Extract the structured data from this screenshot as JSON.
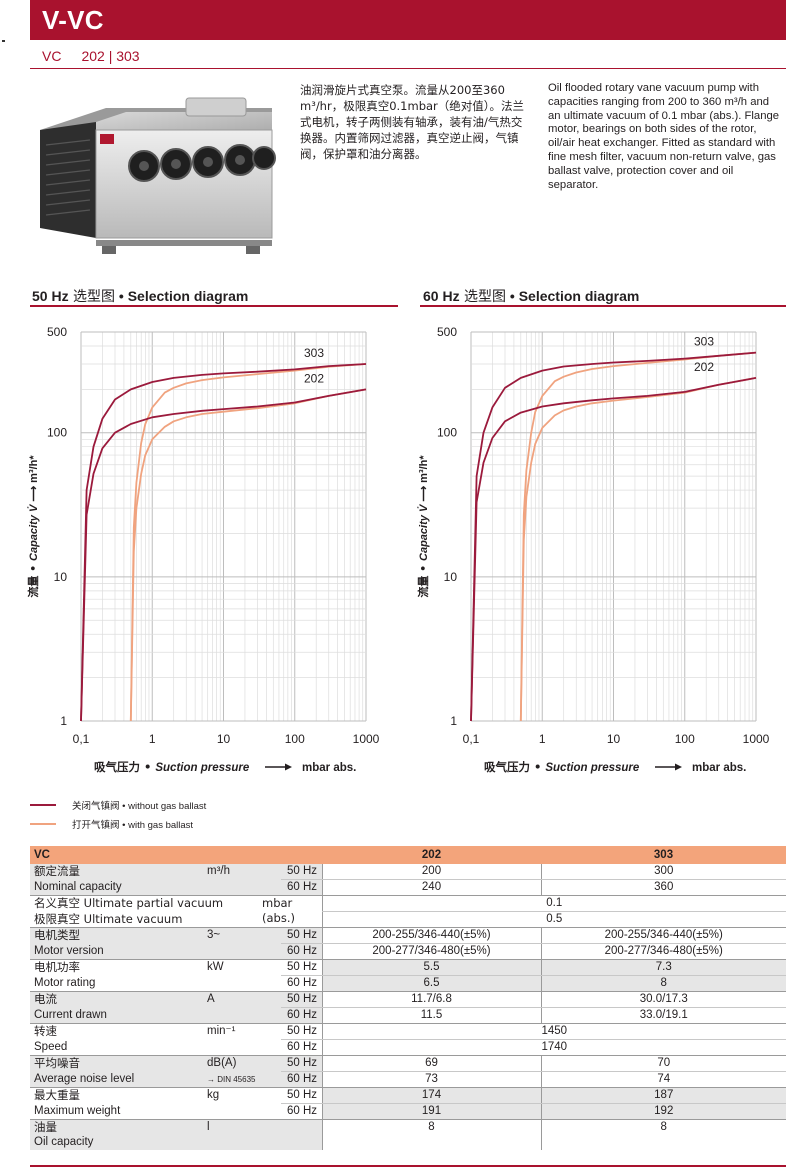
{
  "header": {
    "title": "V-VC"
  },
  "subtitle": {
    "series": "VC",
    "models": "202 | 303"
  },
  "description": {
    "cn": "油润滑旋片式真空泵。流量从200至360 m³/hr，极限真空0.1mbar（绝对值）。法兰式电机，转子两侧装有轴承，装有油/气热交换器。内置筛网过滤器，真空逆止阀，气镇阀，保护罩和油分离器。",
    "en": "Oil flooded rotary vane vacuum pump with capacities ranging from 200 to 360 m³/h and an ultimate vacuum of 0.1 mbar (abs.). Flange motor, bearings on both sides of the rotor, oil/air heat exchanger. Fitted as standard with fine mesh filter, vacuum non-return valve, gas ballast valve, protection cover and oil separator."
  },
  "charts": [
    {
      "heading_bold": "50 Hz",
      "heading_cn": " 选型图",
      "heading_en": " • Selection diagram"
    },
    {
      "heading_bold": "60 Hz",
      "heading_cn": " 选型图",
      "heading_en": " • Selection diagram"
    }
  ],
  "axis_text": {
    "y_cn": "流量 • ",
    "y_en": "Capacity V̇",
    "y_unit": "m³/h*",
    "x_cn": "吸气压力 • ",
    "x_en": "Suction pressure",
    "x_unit": "mbar abs."
  },
  "legend": {
    "without": "关闭气镇阀 • without gas ballast",
    "with": "打开气镇阀 • with gas ballast"
  },
  "colors": {
    "brand": "#a9122e",
    "without_ballast": "#9b1a3c",
    "with_ballast": "#f0a37f",
    "table_header": "#f3a47b"
  },
  "chart_data": [
    {
      "type": "line",
      "title": "50 Hz 选型图 • Selection diagram",
      "xlabel": "吸气压力 • Suction pressure — mbar abs.",
      "ylabel": "流量 • Capacity V̇ — m³/h*",
      "xscale": "log",
      "yscale": "log",
      "xlim": [
        0.1,
        1000
      ],
      "ylim": [
        1,
        500
      ],
      "xticks": [
        "0,1",
        "1",
        "10",
        "100",
        "1000"
      ],
      "yticks": [
        "1",
        "10",
        "100",
        "500"
      ],
      "grid": true,
      "series": [
        {
          "name": "303",
          "ballast": "without",
          "x": [
            0.1,
            0.12,
            0.15,
            0.2,
            0.3,
            0.5,
            1,
            2,
            5,
            10,
            30,
            100,
            300,
            1000
          ],
          "y": [
            1,
            40,
            80,
            125,
            170,
            200,
            225,
            240,
            252,
            258,
            265,
            275,
            290,
            300
          ]
        },
        {
          "name": "202",
          "ballast": "without",
          "x": [
            0.1,
            0.12,
            0.15,
            0.2,
            0.3,
            0.5,
            1,
            2,
            5,
            10,
            30,
            100,
            300,
            1000
          ],
          "y": [
            1,
            27,
            52,
            78,
            100,
            115,
            128,
            135,
            142,
            146,
            152,
            162,
            180,
            200
          ]
        },
        {
          "name": "303",
          "ballast": "with",
          "x": [
            0.5,
            0.55,
            0.6,
            0.7,
            0.8,
            1,
            1.5,
            2,
            3,
            5,
            10,
            30,
            100,
            300,
            1000
          ],
          "y": [
            1,
            22,
            45,
            85,
            115,
            150,
            190,
            205,
            220,
            232,
            242,
            255,
            270,
            287,
            300
          ]
        },
        {
          "name": "202",
          "ballast": "with",
          "x": [
            0.5,
            0.55,
            0.6,
            0.7,
            0.8,
            1,
            1.5,
            2,
            3,
            5,
            10,
            30,
            100,
            300,
            1000
          ],
          "y": [
            1,
            15,
            30,
            52,
            70,
            90,
            110,
            120,
            128,
            135,
            140,
            148,
            160,
            180,
            200
          ]
        }
      ]
    },
    {
      "type": "line",
      "title": "60 Hz 选型图 • Selection diagram",
      "xlabel": "吸气压力 • Suction pressure — mbar abs.",
      "ylabel": "流量 • Capacity V̇ — m³/h*",
      "xscale": "log",
      "yscale": "log",
      "xlim": [
        0.1,
        1000
      ],
      "ylim": [
        1,
        500
      ],
      "xticks": [
        "0,1",
        "1",
        "10",
        "100",
        "1000"
      ],
      "yticks": [
        "1",
        "10",
        "100",
        "500"
      ],
      "grid": true,
      "series": [
        {
          "name": "303",
          "ballast": "without",
          "x": [
            0.1,
            0.12,
            0.15,
            0.2,
            0.3,
            0.5,
            1,
            2,
            5,
            10,
            30,
            100,
            300,
            1000
          ],
          "y": [
            1,
            50,
            100,
            150,
            205,
            240,
            270,
            288,
            300,
            307,
            315,
            327,
            342,
            360
          ]
        },
        {
          "name": "202",
          "ballast": "without",
          "x": [
            0.1,
            0.12,
            0.15,
            0.2,
            0.3,
            0.5,
            1,
            2,
            5,
            10,
            30,
            100,
            300,
            1000
          ],
          "y": [
            1,
            33,
            62,
            92,
            120,
            138,
            152,
            160,
            168,
            173,
            180,
            192,
            215,
            240
          ]
        },
        {
          "name": "303",
          "ballast": "with",
          "x": [
            0.5,
            0.55,
            0.6,
            0.7,
            0.8,
            1,
            1.5,
            2,
            3,
            5,
            10,
            30,
            100,
            300,
            1000
          ],
          "y": [
            1,
            27,
            55,
            100,
            140,
            180,
            228,
            245,
            262,
            277,
            290,
            305,
            322,
            342,
            360
          ]
        },
        {
          "name": "202",
          "ballast": "with",
          "x": [
            0.5,
            0.55,
            0.6,
            0.7,
            0.8,
            1,
            1.5,
            2,
            3,
            5,
            10,
            30,
            100,
            300,
            1000
          ],
          "y": [
            1,
            18,
            36,
            62,
            84,
            108,
            132,
            143,
            152,
            160,
            167,
            177,
            190,
            215,
            240
          ]
        }
      ]
    }
  ],
  "table": {
    "header": {
      "label": "VC",
      "m1": "202",
      "m2": "303"
    },
    "rows": [
      {
        "cn": "额定流量",
        "en": "Nominal capacity",
        "unit": "m³/h",
        "hz1": "50 Hz",
        "hz2": "60 Hz",
        "v1a": "200",
        "v1b": "240",
        "v2a": "300",
        "v2b": "360"
      },
      {
        "cn": "名义真空 Ultimate partial vacuum",
        "en": "极限真空 Ultimate vacuum",
        "unit": "mbar (abs.)",
        "va": "0.1",
        "vb": "0.5"
      },
      {
        "cn": "电机类型",
        "en": "Motor version",
        "unit": "3~",
        "hz1": "50 Hz",
        "hz2": "60 Hz",
        "v1a": "200-255/346-440(±5%)",
        "v1b": "200-277/346-480(±5%)",
        "v2a": "200-255/346-440(±5%)",
        "v2b": "200-277/346-480(±5%)"
      },
      {
        "cn": "电机功率",
        "en": "Motor rating",
        "unit": "kW",
        "hz1": "50 Hz",
        "hz2": "60 Hz",
        "v1a": "5.5",
        "v1b": "6.5",
        "v2a": "7.3",
        "v2b": "8"
      },
      {
        "cn": "电流",
        "en": "Current drawn",
        "unit": "A",
        "hz1": "50 Hz",
        "hz2": "60 Hz",
        "v1a": "11.7/6.8",
        "v1b": "11.5",
        "v2a": "30.0/17.3",
        "v2b": "33.0/19.1"
      },
      {
        "cn": "转速",
        "en": "Speed",
        "unit": "min⁻¹",
        "hz1": "50 Hz",
        "hz2": "60 Hz",
        "va": "1450",
        "vb": "1740"
      },
      {
        "cn": "平均噪音",
        "en": "Average noise level",
        "unit": "dB(A)",
        "unit2": "→ DIN 45635",
        "hz1": "50 Hz",
        "hz2": "60 Hz",
        "v1a": "69",
        "v1b": "73",
        "v2a": "70",
        "v2b": "74"
      },
      {
        "cn": "最大重量",
        "en": "Maximum weight",
        "unit": "kg",
        "hz1": "50 Hz",
        "hz2": "60 Hz",
        "v1a": "174",
        "v1b": "191",
        "v2a": "187",
        "v2b": "192"
      },
      {
        "cn": "油量",
        "en": "Oil capacity",
        "unit": "l",
        "v1a": "8",
        "v2a": "8"
      }
    ]
  }
}
